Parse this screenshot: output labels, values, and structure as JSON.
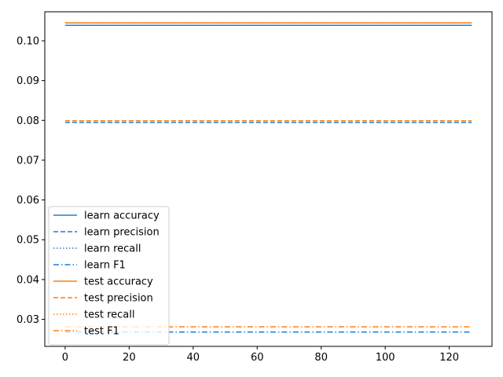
{
  "chart_data": {
    "type": "line",
    "title": "",
    "xlabel": "",
    "ylabel": "",
    "xlim": [
      -6.35,
      133.35
    ],
    "ylim": [
      0.0232,
      0.1073
    ],
    "xticks": [
      0,
      20,
      40,
      60,
      80,
      100,
      120
    ],
    "xtick_labels": [
      "0",
      "20",
      "40",
      "60",
      "80",
      "100",
      "120"
    ],
    "yticks": [
      0.03,
      0.04,
      0.05,
      0.06,
      0.07,
      0.08,
      0.09,
      0.1
    ],
    "ytick_labels": [
      "0.03",
      "0.04",
      "0.05",
      "0.06",
      "0.07",
      "0.08",
      "0.09",
      "0.10"
    ],
    "grid": false,
    "legend_position": "lower-left",
    "x_range": [
      0,
      127
    ],
    "series": [
      {
        "name": "learn accuracy",
        "color": "#1f7fd0",
        "style": "solid",
        "value": 0.1039
      },
      {
        "name": "learn precision",
        "color": "#1f7fd0",
        "style": "dashed",
        "value": 0.0795
      },
      {
        "name": "learn recall",
        "color": "#1f7fd0",
        "style": "dotted",
        "value": 0.1039
      },
      {
        "name": "learn F1",
        "color": "#1f7fd0",
        "style": "dashdot",
        "value": 0.0268
      },
      {
        "name": "test accuracy",
        "color": "#ff7f0e",
        "style": "solid",
        "value": 0.1045
      },
      {
        "name": "test precision",
        "color": "#ff7f0e",
        "style": "dashed",
        "value": 0.0799
      },
      {
        "name": "test recall",
        "color": "#ff7f0e",
        "style": "dotted",
        "value": 0.1045
      },
      {
        "name": "test F1",
        "color": "#ff7f0e",
        "style": "dashdot",
        "value": 0.0281
      }
    ]
  }
}
